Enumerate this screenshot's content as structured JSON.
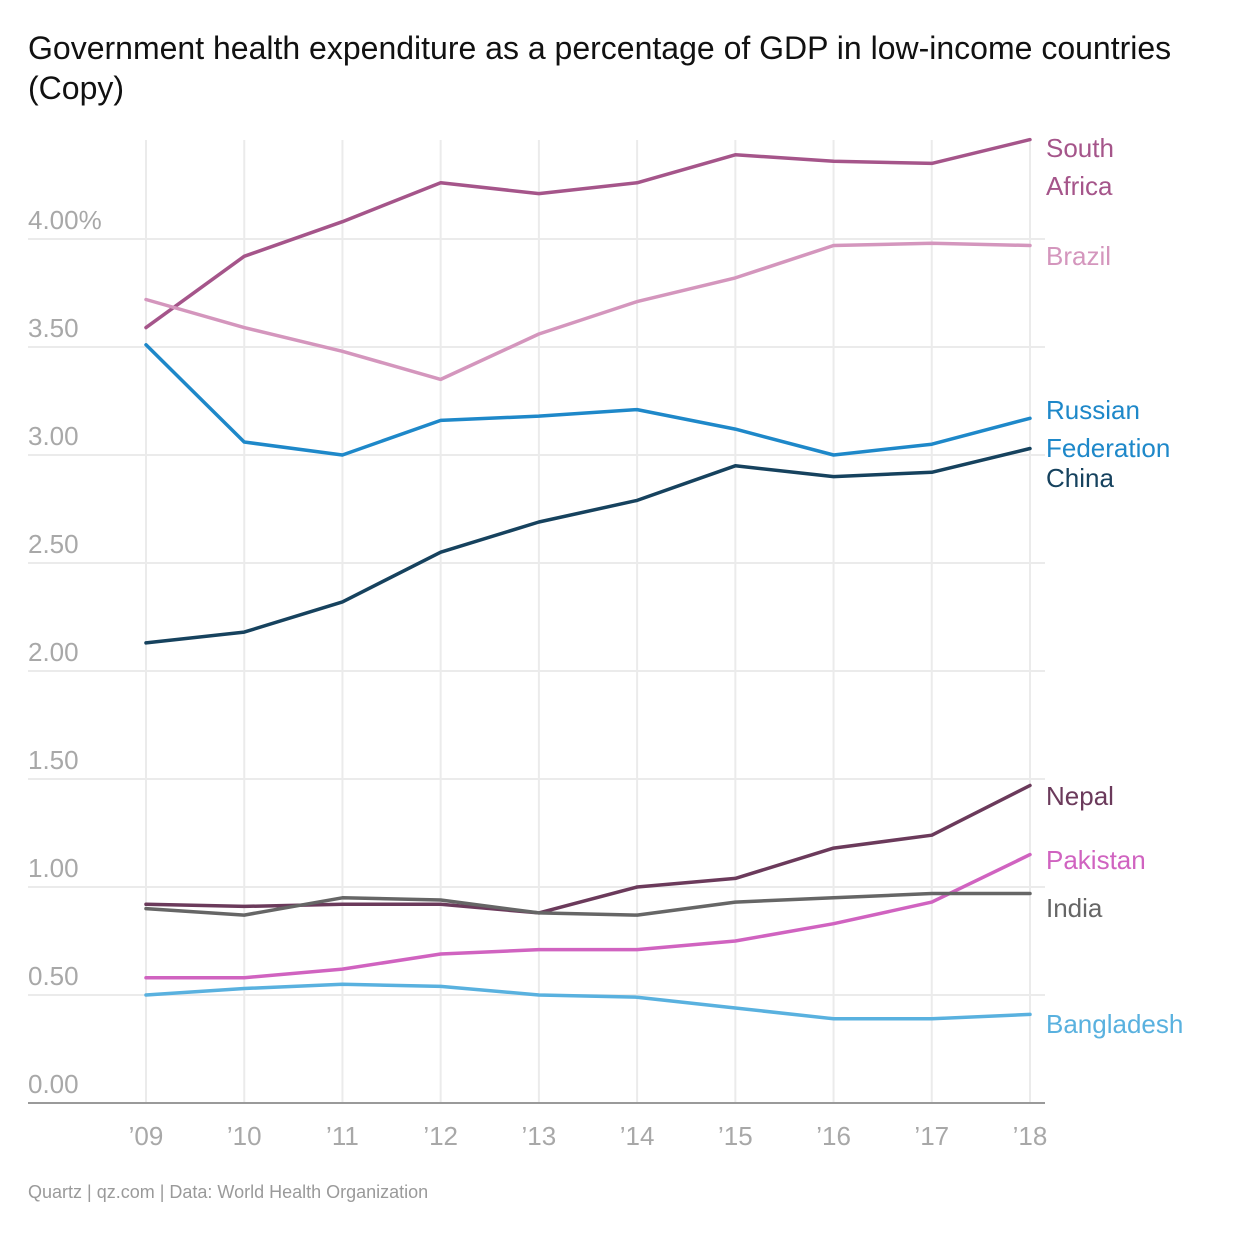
{
  "title": "Government health expenditure as a percentage of GDP in low-income countries (Copy)",
  "source": "Quartz | qz.com | Data: World Health Organization",
  "chart_data": {
    "type": "line",
    "x": [
      2009,
      2010,
      2011,
      2012,
      2013,
      2014,
      2015,
      2016,
      2017,
      2018
    ],
    "x_tick_labels": [
      "’09",
      "’10",
      "’11",
      "’12",
      "’13",
      "’14",
      "’15",
      "’16",
      "’17",
      "’18"
    ],
    "y_ticks": [
      0,
      0.5,
      1,
      1.5,
      2,
      2.5,
      3,
      3.5,
      4
    ],
    "y_tick_labels": [
      "0.00",
      "0.50",
      "1.00",
      "1.50",
      "2.00",
      "2.50",
      "3.00",
      "3.50",
      "4.00%"
    ],
    "ylim": [
      0,
      4.5
    ],
    "grid": true,
    "legend": "inline-right",
    "series": [
      {
        "name": "South Africa",
        "label_lines": [
          "South",
          "Africa"
        ],
        "color": "#a5558a",
        "values": [
          3.59,
          3.92,
          4.08,
          4.26,
          4.21,
          4.26,
          4.39,
          4.36,
          4.35,
          4.46
        ]
      },
      {
        "name": "Brazil",
        "label_lines": [
          "Brazil"
        ],
        "color": "#d496bd",
        "values": [
          3.72,
          3.59,
          3.48,
          3.35,
          3.56,
          3.71,
          3.82,
          3.97,
          3.98,
          3.97
        ]
      },
      {
        "name": "Russian Federation",
        "label_lines": [
          "Russian",
          "Federation"
        ],
        "color": "#1e88c9",
        "values": [
          3.51,
          3.06,
          3.0,
          3.16,
          3.18,
          3.21,
          3.12,
          3.0,
          3.05,
          3.17
        ]
      },
      {
        "name": "China",
        "label_lines": [
          "China"
        ],
        "color": "#16425e",
        "values": [
          2.13,
          2.18,
          2.32,
          2.55,
          2.69,
          2.79,
          2.95,
          2.9,
          2.92,
          3.03
        ]
      },
      {
        "name": "Nepal",
        "label_lines": [
          "Nepal"
        ],
        "color": "#6b3a5b",
        "values": [
          0.92,
          0.91,
          0.92,
          0.92,
          0.88,
          1.0,
          1.04,
          1.18,
          1.24,
          1.47
        ]
      },
      {
        "name": "Pakistan",
        "label_lines": [
          "Pakistan"
        ],
        "color": "#d063c0",
        "values": [
          0.58,
          0.58,
          0.62,
          0.69,
          0.71,
          0.71,
          0.75,
          0.83,
          0.93,
          1.15
        ]
      },
      {
        "name": "India",
        "label_lines": [
          "India"
        ],
        "color": "#666666",
        "values": [
          0.9,
          0.87,
          0.95,
          0.94,
          0.88,
          0.87,
          0.93,
          0.95,
          0.97,
          0.97
        ]
      },
      {
        "name": "Bangladesh",
        "label_lines": [
          "Bangladesh"
        ],
        "color": "#59b1df",
        "values": [
          0.5,
          0.53,
          0.55,
          0.54,
          0.5,
          0.49,
          0.44,
          0.39,
          0.39,
          0.41
        ]
      }
    ]
  }
}
